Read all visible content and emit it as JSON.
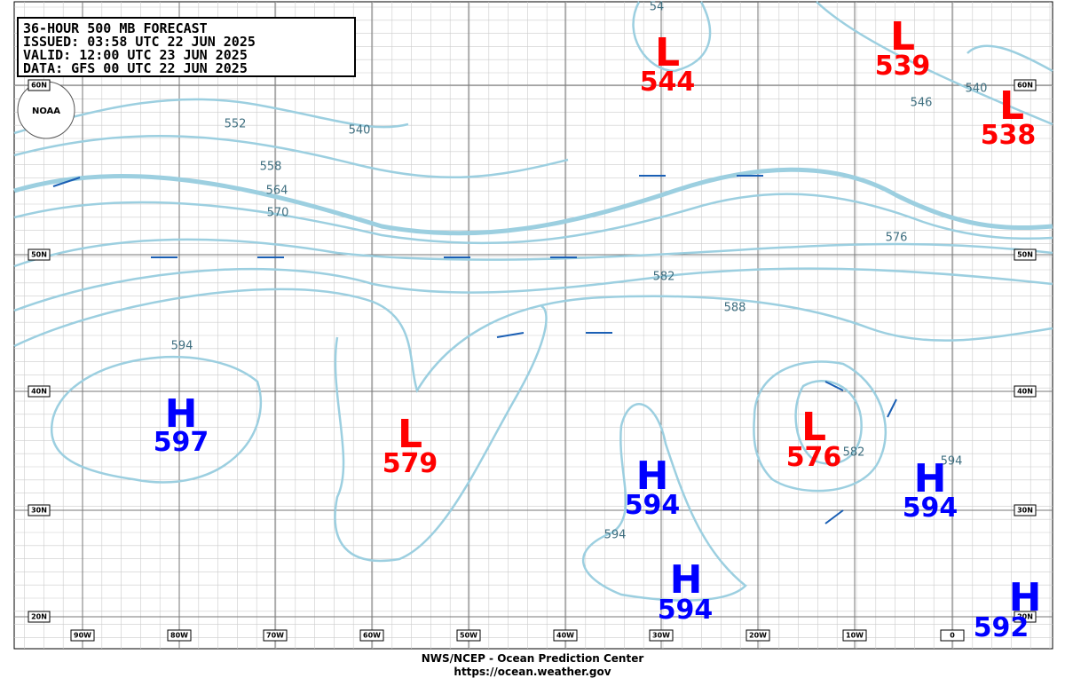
{
  "header": {
    "lines": [
      "36-HOUR 500 MB FORECAST",
      "ISSUED:  03:58 UTC 22 JUN 2025",
      "VALID:   12:00 UTC 23 JUN 2025",
      "DATA:   GFS 00 UTC 22 JUN 2025"
    ]
  },
  "logo": "NOAA",
  "centers": [
    {
      "type": "L",
      "value": 544
    },
    {
      "type": "L",
      "value": 539
    },
    {
      "type": "L",
      "value": 538
    },
    {
      "type": "H",
      "value": 597
    },
    {
      "type": "L",
      "value": 579
    },
    {
      "type": "H",
      "value": 594
    },
    {
      "type": "L",
      "value": 576
    },
    {
      "type": "H",
      "value": 594
    },
    {
      "type": "H",
      "value": 594
    },
    {
      "type": "H",
      "value": 592
    }
  ],
  "contour_labels": [
    "552",
    "558",
    "564",
    "570",
    "540",
    "576",
    "582",
    "588",
    "594",
    "594",
    "582",
    "594",
    "540",
    "546",
    "54"
  ],
  "latitudes": [
    "60N",
    "50N",
    "40N",
    "30N",
    "20N"
  ],
  "longitudes": [
    "90W",
    "80W",
    "70W",
    "60W",
    "50W",
    "40W",
    "30W",
    "20W",
    "10W",
    "0"
  ],
  "footer": {
    "agency": "NWS/NCEP - Ocean Prediction Center",
    "url": "https://ocean.weather.gov"
  }
}
